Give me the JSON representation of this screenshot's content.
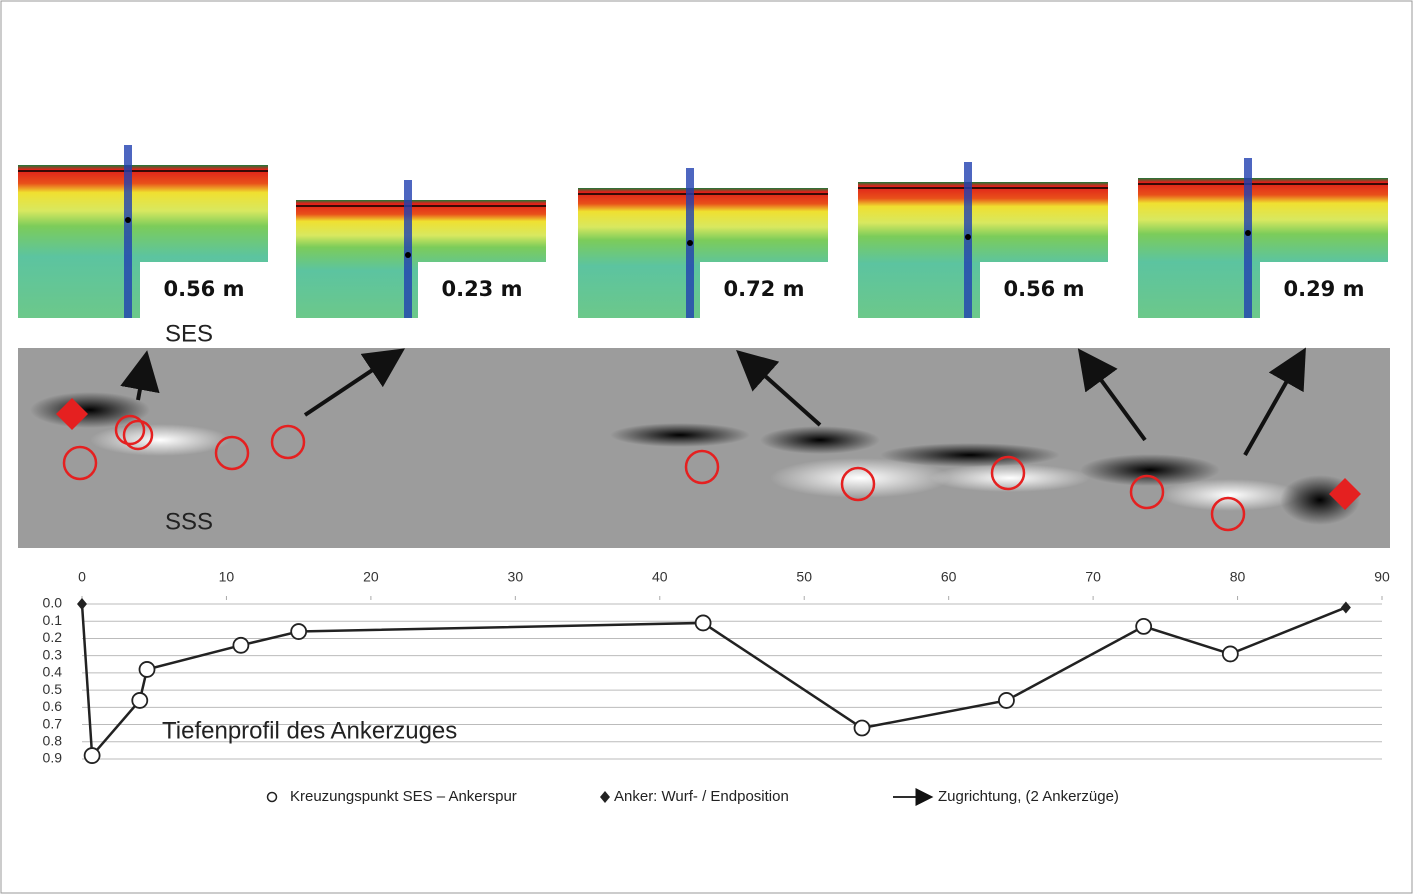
{
  "panels": [
    {
      "label": "0.56 m"
    },
    {
      "label": "0.23 m"
    },
    {
      "label": "0.72 m"
    },
    {
      "label": "0.56 m"
    },
    {
      "label": "0.29 m"
    }
  ],
  "ses_label": "SES",
  "sss_label": "SSS",
  "chart_data": {
    "type": "line",
    "annotation": "Tiefenprofil  des Ankerzuges",
    "xlim": [
      0,
      90
    ],
    "xticks": [
      0,
      10,
      20,
      30,
      40,
      50,
      60,
      70,
      80,
      90
    ],
    "ylim": [
      0,
      0.9
    ],
    "y_inverted": true,
    "yticks": [
      {
        "value": 0,
        "label": "0.0"
      },
      0.1,
      0.2,
      0.3,
      0.4,
      0.5,
      0.6,
      0.7,
      0.8,
      0.9
    ],
    "grid": true,
    "color": "#222222",
    "series": [
      {
        "name": "Kreuzungspunkt SES – Ankerspur",
        "marker": "circle",
        "x": [
          0.7,
          4,
          4.5,
          11,
          15,
          43,
          54,
          64,
          73.5,
          79.5
        ],
        "values": [
          0.88,
          0.56,
          0.38,
          0.24,
          0.16,
          0.11,
          0.72,
          0.56,
          0.13,
          0.29
        ]
      },
      {
        "name": "Anker: Wurf- / Endposition",
        "marker": "diamond",
        "x": [
          0,
          87.5
        ],
        "values": [
          0,
          0.02
        ]
      }
    ],
    "legend_extra": "Zugrichtung, (2 Ankerzüge)"
  }
}
